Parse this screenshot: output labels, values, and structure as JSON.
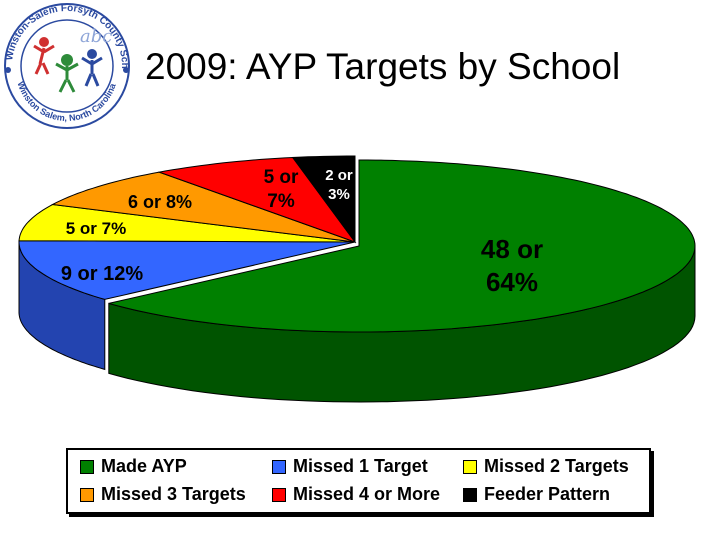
{
  "title": "2009: AYP Targets by School",
  "logo": {
    "ring_text_top": "Winston-Salem Forsyth County Schools",
    "ring_text_bottom": "Winston Salem, North Carolina",
    "center_text": "abc",
    "colors": {
      "blue": "#2b4aa0",
      "green": "#2e8b3a",
      "red": "#d03030",
      "lightblue": "#8fa6d8"
    }
  },
  "chart_data": {
    "type": "pie",
    "style": "3d-exploded-edge",
    "start_position": "top (12 o'clock), proceeding clockwise",
    "slices": [
      {
        "name": "Made AYP",
        "count": 48,
        "percent": 64,
        "label_line1": "48 or",
        "label_line2": "64%",
        "color": "#008000",
        "side_color": "#005400"
      },
      {
        "name": "Missed 1 Target",
        "count": 9,
        "percent": 12,
        "label_line1": "9 or 12%",
        "label_line2": "",
        "color": "#3366ff",
        "side_color": "#2344b0"
      },
      {
        "name": "Missed 2 Targets",
        "count": 5,
        "percent": 7,
        "label_line1": "5 or 7%",
        "label_line2": "",
        "color": "#ffff00",
        "side_color": "#b5b500"
      },
      {
        "name": "Missed 3 Targets",
        "count": 6,
        "percent": 8,
        "label_line1": "6 or 8%",
        "label_line2": "",
        "color": "#ff9900",
        "side_color": "#b36b00"
      },
      {
        "name": "Missed 4 or More",
        "count": 5,
        "percent": 7,
        "label_line1": "5 or",
        "label_line2": "7%",
        "color": "#ff0000",
        "side_color": "#b30000"
      },
      {
        "name": "Feeder Pattern",
        "count": 2,
        "percent": 3,
        "label_line1": "2 or",
        "label_line2": "3%",
        "color": "#000000",
        "side_color": "#000000"
      }
    ],
    "legend": {
      "placement": "bottom",
      "entries": [
        "Made AYP",
        "Missed 1 Target",
        "Missed 2 Targets",
        "Missed 3 Targets",
        "Missed 4 or More",
        "Feeder Pattern"
      ]
    }
  }
}
